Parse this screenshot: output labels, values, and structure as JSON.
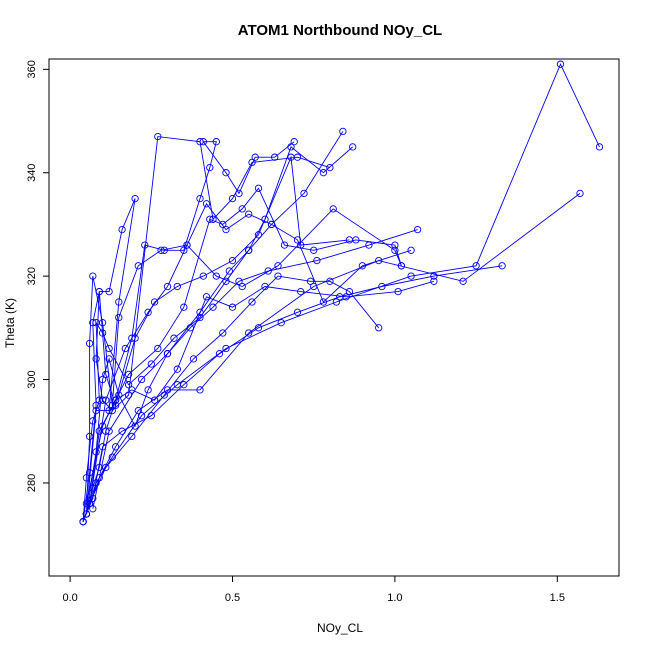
{
  "chart_data": {
    "type": "line",
    "title": "ATOM1 Northbound NOy_CL",
    "xlabel": "NOy_CL",
    "ylabel": "Theta (K)",
    "xlim": [
      -0.065,
      1.69
    ],
    "ylim": [
      262,
      362
    ],
    "x_ticks": [
      0.0,
      0.5,
      1.0,
      1.5
    ],
    "x_tick_labels": [
      "0.0",
      "0.5",
      "1.0",
      "1.5"
    ],
    "y_ticks": [
      280,
      300,
      320,
      340,
      360
    ],
    "y_tick_labels": [
      "280",
      "300",
      "320",
      "340",
      "360"
    ],
    "grid": false,
    "legend": "none",
    "series_color": "#0000ff",
    "marker": "open-circle",
    "series": [
      {
        "values": [
          [
            0.04,
            272.5
          ],
          [
            0.05,
            281
          ],
          [
            0.07,
            292
          ],
          [
            0.09,
            296
          ],
          [
            0.08,
            311
          ],
          [
            0.1,
            309
          ],
          [
            0.12,
            306
          ],
          [
            0.18,
            299
          ],
          [
            0.25,
            303
          ],
          [
            0.32,
            308
          ],
          [
            0.4,
            312
          ],
          [
            0.48,
            319
          ],
          [
            0.55,
            325
          ],
          [
            0.62,
            330
          ],
          [
            0.72,
            336
          ],
          [
            0.84,
            348
          ]
        ]
      },
      {
        "values": [
          [
            0.04,
            272.5
          ],
          [
            0.06,
            282
          ],
          [
            0.08,
            295
          ],
          [
            0.07,
            311
          ],
          [
            0.09,
            317
          ],
          [
            0.11,
            301
          ],
          [
            0.14,
            295
          ],
          [
            0.2,
            308
          ],
          [
            0.26,
            315
          ],
          [
            0.33,
            318
          ],
          [
            0.41,
            320
          ],
          [
            0.5,
            323
          ],
          [
            0.58,
            328
          ],
          [
            0.68,
            343
          ],
          [
            0.71,
            326
          ],
          [
            0.86,
            327
          ]
        ]
      },
      {
        "values": [
          [
            0.05,
            274
          ],
          [
            0.06,
            289
          ],
          [
            0.06,
            307
          ],
          [
            0.07,
            320
          ],
          [
            0.1,
            311
          ],
          [
            0.13,
            295
          ],
          [
            0.15,
            312
          ],
          [
            0.21,
            322
          ],
          [
            0.28,
            325
          ],
          [
            0.36,
            326
          ],
          [
            0.45,
            320
          ],
          [
            0.53,
            318
          ],
          [
            0.64,
            322
          ],
          [
            0.81,
            333
          ],
          [
            1.0,
            325
          ],
          [
            1.02,
            322
          ]
        ]
      },
      {
        "values": [
          [
            0.05,
            274
          ],
          [
            0.07,
            279
          ],
          [
            0.09,
            283
          ],
          [
            0.11,
            290
          ],
          [
            0.14,
            296
          ],
          [
            0.19,
            298
          ],
          [
            0.26,
            296
          ],
          [
            0.33,
            302
          ],
          [
            0.42,
            316
          ],
          [
            0.5,
            314
          ],
          [
            0.6,
            318
          ],
          [
            0.71,
            317
          ],
          [
            0.85,
            316
          ],
          [
            1.01,
            317
          ],
          [
            1.12,
            319
          ]
        ]
      },
      {
        "values": [
          [
            0.05,
            274
          ],
          [
            0.08,
            286
          ],
          [
            0.1,
            300
          ],
          [
            0.12,
            304
          ],
          [
            0.15,
            297
          ],
          [
            0.2,
            291
          ],
          [
            0.24,
            298
          ],
          [
            0.3,
            305
          ],
          [
            0.37,
            310
          ],
          [
            0.44,
            314
          ],
          [
            0.52,
            319
          ],
          [
            0.61,
            321
          ],
          [
            0.76,
            323
          ],
          [
            0.92,
            326
          ],
          [
            1.07,
            329
          ]
        ]
      },
      {
        "values": [
          [
            0.04,
            272.5
          ],
          [
            0.07,
            277
          ],
          [
            0.1,
            287
          ],
          [
            0.16,
            290
          ],
          [
            0.25,
            293
          ],
          [
            0.35,
            299
          ],
          [
            0.46,
            305
          ],
          [
            0.58,
            310
          ],
          [
            0.7,
            313
          ],
          [
            0.83,
            316
          ],
          [
            0.96,
            318
          ],
          [
            1.12,
            320
          ],
          [
            1.33,
            322
          ]
        ]
      },
      {
        "values": [
          [
            0.04,
            272.5
          ],
          [
            0.08,
            280
          ],
          [
            0.13,
            285
          ],
          [
            0.22,
            293
          ],
          [
            0.33,
            299
          ],
          [
            0.48,
            306
          ],
          [
            0.65,
            311
          ],
          [
            0.82,
            315
          ],
          [
            1.05,
            320
          ],
          [
            1.25,
            322
          ],
          [
            1.51,
            361
          ],
          [
            1.63,
            345
          ]
        ]
      },
      {
        "values": [
          [
            0.05,
            274
          ],
          [
            0.09,
            281
          ],
          [
            0.14,
            287
          ],
          [
            0.21,
            294
          ],
          [
            0.3,
            298
          ],
          [
            0.4,
            298
          ],
          [
            0.55,
            309
          ],
          [
            0.75,
            318
          ],
          [
            0.95,
            323
          ],
          [
            1.21,
            319
          ],
          [
            1.57,
            336
          ]
        ]
      },
      {
        "values": [
          [
            0.05,
            274
          ],
          [
            0.08,
            294
          ],
          [
            0.12,
            294
          ],
          [
            0.15,
            315
          ],
          [
            0.2,
            335
          ],
          [
            0.16,
            329
          ],
          [
            0.12,
            317
          ],
          [
            0.09,
            317
          ],
          [
            0.08,
            304
          ],
          [
            0.1,
            296
          ],
          [
            0.13,
            294
          ],
          [
            0.18,
            297
          ],
          [
            0.27,
            347
          ],
          [
            0.4,
            346
          ],
          [
            0.44,
            331
          ],
          [
            0.5,
            335
          ],
          [
            0.56,
            342
          ],
          [
            0.7,
            343
          ],
          [
            0.8,
            341
          ]
        ]
      },
      {
        "values": [
          [
            0.06,
            276
          ],
          [
            0.09,
            290
          ],
          [
            0.14,
            296
          ],
          [
            0.19,
            308
          ],
          [
            0.23,
            326
          ],
          [
            0.29,
            325
          ],
          [
            0.35,
            325
          ],
          [
            0.4,
            335
          ],
          [
            0.43,
            341
          ],
          [
            0.45,
            346
          ],
          [
            0.41,
            346
          ],
          [
            0.48,
            340
          ],
          [
            0.52,
            336
          ],
          [
            0.57,
            343
          ],
          [
            0.63,
            343
          ],
          [
            0.69,
            346
          ]
        ]
      },
      {
        "values": [
          [
            0.05,
            276
          ],
          [
            0.1,
            291
          ],
          [
            0.18,
            301
          ],
          [
            0.27,
            306
          ],
          [
            0.35,
            314
          ],
          [
            0.43,
            331
          ],
          [
            0.47,
            330
          ],
          [
            0.53,
            333
          ],
          [
            0.58,
            337
          ],
          [
            0.66,
            326
          ],
          [
            0.75,
            325
          ],
          [
            0.88,
            327
          ],
          [
            1.0,
            326
          ],
          [
            1.02,
            322
          ]
        ]
      },
      {
        "values": [
          [
            0.06,
            276
          ],
          [
            0.11,
            283
          ],
          [
            0.19,
            289
          ],
          [
            0.29,
            297
          ],
          [
            0.38,
            304
          ],
          [
            0.47,
            309
          ],
          [
            0.56,
            315
          ],
          [
            0.64,
            320
          ],
          [
            0.74,
            319
          ],
          [
            0.8,
            319
          ],
          [
            0.86,
            317
          ],
          [
            0.95,
            310
          ]
        ]
      },
      {
        "values": [
          [
            0.07,
            275
          ],
          [
            0.12,
            290
          ],
          [
            0.22,
            300
          ],
          [
            0.3,
            305
          ],
          [
            0.4,
            313
          ],
          [
            0.49,
            321
          ],
          [
            0.55,
            325
          ],
          [
            0.6,
            331
          ],
          [
            0.68,
            345
          ],
          [
            0.78,
            340
          ],
          [
            0.87,
            345
          ]
        ]
      },
      {
        "values": [
          [
            0.06,
            276
          ],
          [
            0.11,
            296
          ],
          [
            0.17,
            306
          ],
          [
            0.24,
            313
          ],
          [
            0.3,
            318
          ],
          [
            0.36,
            326
          ],
          [
            0.42,
            334
          ],
          [
            0.48,
            329
          ],
          [
            0.55,
            332
          ],
          [
            0.62,
            330
          ],
          [
            0.7,
            327
          ],
          [
            0.78,
            315
          ],
          [
            0.9,
            322
          ],
          [
            1.05,
            325
          ]
        ]
      }
    ]
  }
}
